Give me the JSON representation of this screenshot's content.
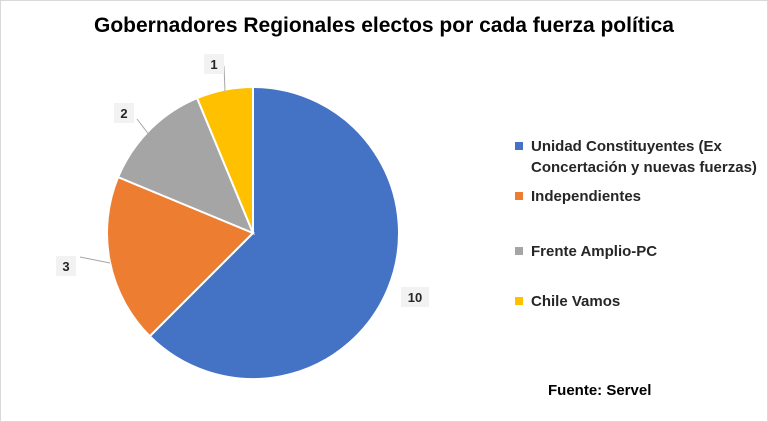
{
  "chart_data": {
    "type": "pie",
    "title": "Gobernadores Regionales electos por cada fuerza política",
    "categories": [
      "Unidad Constituyentes (Ex Concertación y nuevas fuerzas)",
      "Independientes",
      "Frente Amplio-PC",
      "Chile Vamos"
    ],
    "values": [
      10,
      3,
      2,
      1
    ],
    "data_labels": [
      "10",
      "3",
      "2",
      "1"
    ],
    "colors": [
      "#4472C4",
      "#ED7D31",
      "#A5A5A5",
      "#FFC000"
    ],
    "legend_position": "right"
  },
  "legend": {
    "items": [
      {
        "label_line1": "Unidad Constituyentes (Ex",
        "label_line2": "Concertación y nuevas fuerzas)"
      },
      {
        "label_line1": "Independientes"
      },
      {
        "label_line1": "Frente Amplio-PC"
      },
      {
        "label_line1": "Chile Vamos"
      }
    ]
  },
  "source": "Fuente: Servel"
}
